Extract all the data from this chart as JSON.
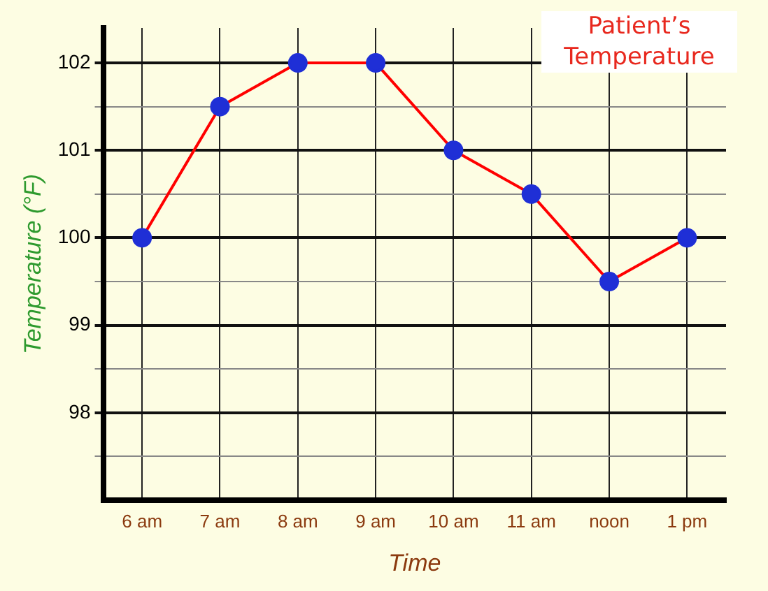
{
  "chart_data": {
    "type": "line",
    "title": "Patient’s Temperature",
    "xlabel": "Time",
    "ylabel": "Temperature (°F)",
    "categories": [
      "6 am",
      "7 am",
      "8 am",
      "9 am",
      "10 am",
      "11 am",
      "noon",
      "1 pm"
    ],
    "series": [
      {
        "color": "#ff0000",
        "values": [
          100,
          101.5,
          102,
          102,
          101,
          100.5,
          99.5,
          100
        ]
      }
    ],
    "ylim": [
      97,
      102.4
    ],
    "yticks": [
      {
        "value": 97.5,
        "label": null
      },
      98,
      {
        "value": 98.5,
        "label": null
      },
      99,
      {
        "value": 99.5,
        "label": null
      },
      100,
      {
        "value": 100.5,
        "label": null
      },
      101,
      {
        "value": 101.5,
        "label": null
      },
      102
    ],
    "grid": true,
    "marker": "circle",
    "line_style": "solid"
  }
}
